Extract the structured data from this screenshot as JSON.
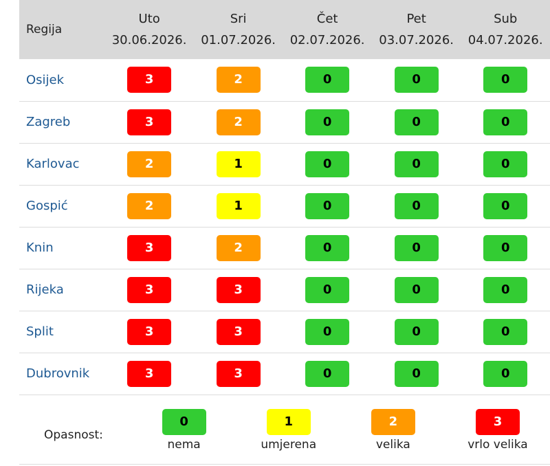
{
  "header": {
    "region_label": "Regija",
    "days": [
      {
        "day": "Uto",
        "date": "30.06.2026."
      },
      {
        "day": "Sri",
        "date": "01.07.2026."
      },
      {
        "day": "Čet",
        "date": "02.07.2026."
      },
      {
        "day": "Pet",
        "date": "03.07.2026."
      },
      {
        "day": "Sub",
        "date": "04.07.2026."
      }
    ]
  },
  "levels": {
    "0": {
      "bg": "#33cc33",
      "fg": "#000000",
      "label": "nema"
    },
    "1": {
      "bg": "#ffff00",
      "fg": "#000000",
      "label": "umjerena"
    },
    "2": {
      "bg": "#ff9900",
      "fg": "#ffffff",
      "label": "velika"
    },
    "3": {
      "bg": "#ff0000",
      "fg": "#ffffff",
      "label": "vrlo velika"
    }
  },
  "rows": [
    {
      "region": "Osijek",
      "values": [
        3,
        2,
        0,
        0,
        0
      ]
    },
    {
      "region": "Zagreb",
      "values": [
        3,
        2,
        0,
        0,
        0
      ]
    },
    {
      "region": "Karlovac",
      "values": [
        2,
        1,
        0,
        0,
        0
      ]
    },
    {
      "region": "Gospić",
      "values": [
        2,
        1,
        0,
        0,
        0
      ]
    },
    {
      "region": "Knin",
      "values": [
        3,
        2,
        0,
        0,
        0
      ]
    },
    {
      "region": "Rijeka",
      "values": [
        3,
        3,
        0,
        0,
        0
      ]
    },
    {
      "region": "Split",
      "values": [
        3,
        3,
        0,
        0,
        0
      ]
    },
    {
      "region": "Dubrovnik",
      "values": [
        3,
        3,
        0,
        0,
        0
      ]
    }
  ],
  "legend": {
    "title": "Opasnost:",
    "items": [
      {
        "value": "0",
        "label": "nema"
      },
      {
        "value": "1",
        "label": "umjerena"
      },
      {
        "value": "2",
        "label": "velika"
      },
      {
        "value": "3",
        "label": "vrlo velika"
      }
    ]
  }
}
